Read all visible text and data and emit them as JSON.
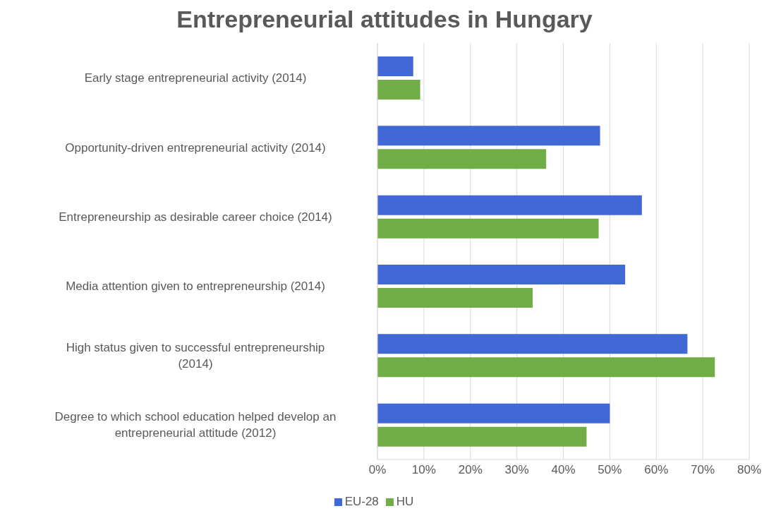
{
  "chart_data": {
    "type": "bar",
    "orientation": "horizontal",
    "title": "Entrepreneurial attitudes in Hungary",
    "categories": [
      "Early stage entrepreneurial activity (2014)",
      "Opportunity-driven entrepreneurial activity (2014)",
      "Entrepreneurship as desirable career choice (2014)",
      "Media attention given to entrepreneurship (2014)",
      "High status given to successful entrepreneurship (2014)",
      "Degree to which school education helped develop an entrepreneurial attitude (2012)"
    ],
    "series": [
      {
        "name": "EU-28",
        "color": "#4169d6",
        "values": [
          7.7,
          47.9,
          56.9,
          53.3,
          66.7,
          50
        ]
      },
      {
        "name": "HU",
        "color": "#70ad47",
        "values": [
          9.2,
          36.3,
          47.6,
          33.4,
          72.6,
          45
        ]
      }
    ],
    "xlim": [
      0,
      80
    ],
    "xticks": [
      {
        "value": 0,
        "label": "0%"
      },
      {
        "value": 10,
        "label": "10%"
      },
      {
        "value": 20,
        "label": "20%"
      },
      {
        "value": 30,
        "label": "30%"
      },
      {
        "value": 40,
        "label": "40%"
      },
      {
        "value": 50,
        "label": "50%"
      },
      {
        "value": 60,
        "label": "60%"
      },
      {
        "value": 70,
        "label": "70%"
      },
      {
        "value": 80,
        "label": "80%"
      }
    ],
    "grid": "x",
    "legend": "bottom"
  }
}
